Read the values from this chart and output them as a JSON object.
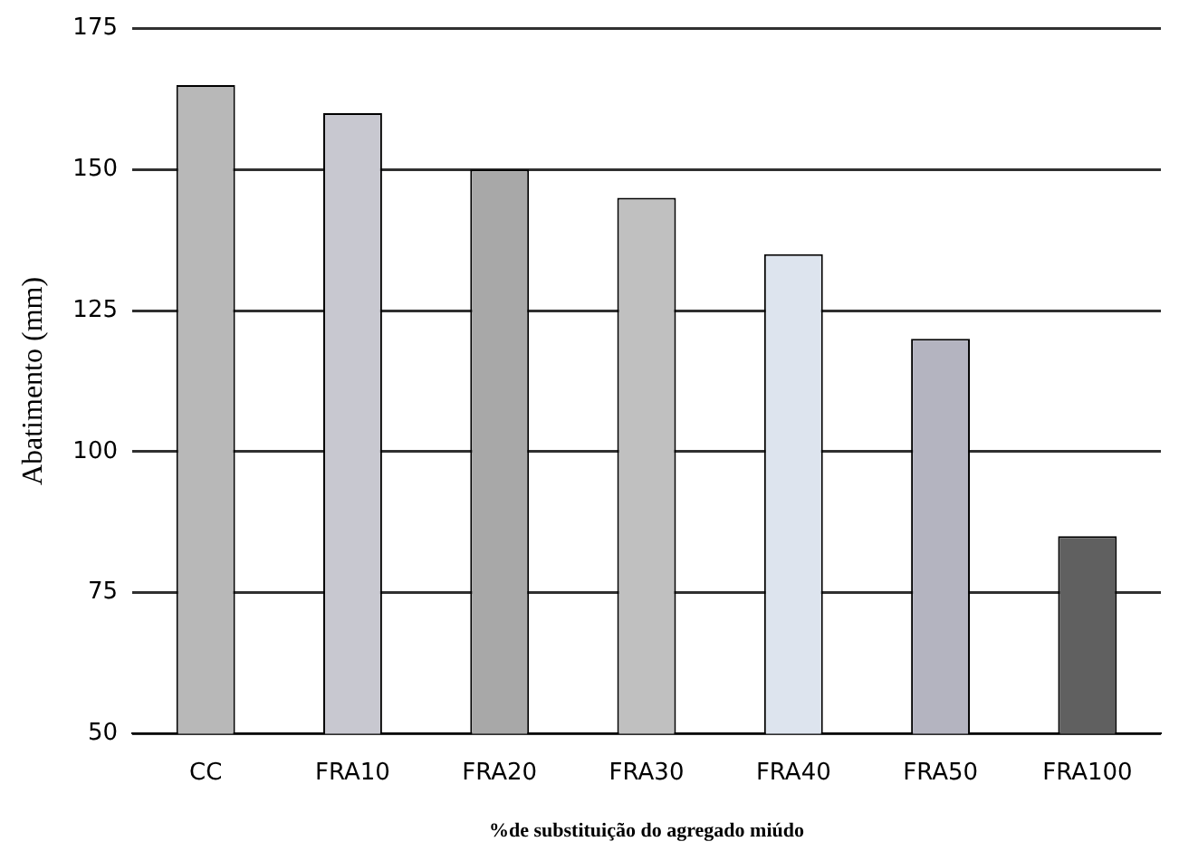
{
  "chart_data": {
    "type": "bar",
    "xlabel": "%de substituição do agregado miúdo",
    "ylabel": "Abatimento (mm)",
    "categories": [
      "CC",
      "FRA10",
      "FRA20",
      "FRA30",
      "FRA40",
      "FRA50",
      "FRA100"
    ],
    "values": [
      165,
      160,
      150,
      145,
      135,
      120,
      85
    ],
    "colors": [
      "#b8b8b8",
      "#c8c8d0",
      "#a8a8a8",
      "#c0c0c0",
      "#dde4ee",
      "#b4b4c0",
      "#606060"
    ],
    "ylim": [
      50,
      175
    ],
    "yticks": [
      50,
      75,
      100,
      125,
      150,
      175
    ],
    "grid": "y",
    "legend": false
  }
}
